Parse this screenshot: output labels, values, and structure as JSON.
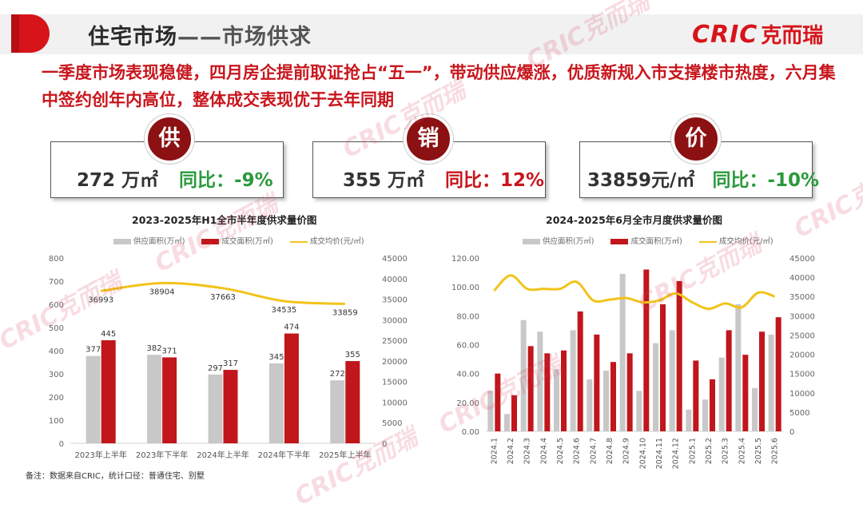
{
  "header": {
    "title_main": "住宅市场",
    "title_dash": "——",
    "title_sub": "市场供求",
    "brand_latin": "CRIC",
    "brand_cn": "克而瑞"
  },
  "headline": "一季度市场表现稳健，四月房企提前取证抢占“五一”，带动供应爆涨，优质新规入市支撑楼市热度，六月集中签约创年内高位，整体成交表现优于去年同期",
  "kpis": [
    {
      "badge": "供",
      "value": "272 万㎡",
      "yoy": "同比：-9%",
      "yoy_color": "#2a9a3c"
    },
    {
      "badge": "销",
      "value": "355 万㎡",
      "yoy": "同比：12%",
      "yoy_color": "#c8161d"
    },
    {
      "badge": "价",
      "value": "33859元/㎡",
      "yoy": "同比：-10%",
      "yoy_color": "#2a9a3c"
    }
  ],
  "colors": {
    "supply": "#c8c8c8",
    "deal": "#c0161c",
    "price": "#f2c31a",
    "accent": "#c8161d"
  },
  "chart_data": [
    {
      "type": "bar",
      "title": "2023-2025年H1全市半年度供求量价图",
      "legend": [
        "供应面积(万㎡)",
        "成交面积(万㎡)",
        "成交均价(元/㎡)"
      ],
      "categories": [
        "2023年上半年",
        "2023年下半年",
        "2024年上半年",
        "2024年下半年",
        "2025年上半年"
      ],
      "series": [
        {
          "name": "供应面积(万㎡)",
          "type": "bar",
          "axis": "left",
          "values": [
            377,
            382,
            297,
            345,
            272
          ]
        },
        {
          "name": "成交面积(万㎡)",
          "type": "bar",
          "axis": "left",
          "values": [
            445,
            371,
            317,
            474,
            355
          ]
        },
        {
          "name": "成交均价(元/㎡)",
          "type": "line",
          "axis": "right",
          "values": [
            36993,
            38904,
            37663,
            34535,
            33859
          ]
        }
      ],
      "ylim_left": [
        0,
        800
      ],
      "yticks_left": [
        "0",
        "100",
        "200",
        "300",
        "400",
        "500",
        "600",
        "700",
        "800"
      ],
      "ylim_right": [
        0,
        45000
      ],
      "yticks_right": [
        "0",
        "5000",
        "10000",
        "15000",
        "20000",
        "25000",
        "30000",
        "35000",
        "40000",
        "45000"
      ],
      "data_labels": true,
      "grid": false,
      "legend_position": "top"
    },
    {
      "type": "bar",
      "title": "2024-2025年6月全市月度供求量价图",
      "legend": [
        "供应面积(万㎡)",
        "成交面积(万㎡)",
        "成交均价(元/㎡)"
      ],
      "categories": [
        "2024.1",
        "2024.2",
        "2024.3",
        "2024.4",
        "2024.5",
        "2024.6",
        "2024.7",
        "2024.8",
        "2024.9",
        "2024.10",
        "2024.11",
        "2024.12",
        "2025.1",
        "2025.2",
        "2025.3",
        "2025.4",
        "2025.5",
        "2025.6"
      ],
      "series": [
        {
          "name": "供应面积(万㎡)",
          "type": "bar",
          "axis": "left",
          "values": [
            28,
            12,
            77,
            69,
            43,
            70,
            36,
            42,
            109,
            28,
            61,
            70,
            15,
            22,
            51,
            88,
            30,
            67
          ]
        },
        {
          "name": "成交面积(万㎡)",
          "type": "bar",
          "axis": "left",
          "values": [
            40,
            25,
            59,
            54,
            56,
            83,
            67,
            48,
            54,
            112,
            88,
            104,
            49,
            36,
            70,
            53,
            69,
            79
          ]
        },
        {
          "name": "成交均价(元/㎡)",
          "type": "line",
          "axis": "right",
          "values": [
            36500,
            40500,
            37000,
            37000,
            37000,
            38800,
            34000,
            34200,
            34600,
            33500,
            34000,
            35800,
            33500,
            31800,
            33200,
            32200,
            36000,
            35000
          ]
        }
      ],
      "ylim_left": [
        0,
        120
      ],
      "yticks_left": [
        "0.00",
        "20.00",
        "40.00",
        "60.00",
        "80.00",
        "100.00",
        "120.00"
      ],
      "ylim_right": [
        0,
        45000
      ],
      "yticks_right": [
        "0",
        "5000",
        "10000",
        "15000",
        "20000",
        "25000",
        "30000",
        "35000",
        "40000",
        "45000"
      ],
      "data_labels": false,
      "grid": false,
      "legend_position": "top"
    }
  ],
  "footnote": "备注：数据来自CRIC，统计口径：普通住宅、别墅",
  "watermark": "CRIC克而瑞"
}
